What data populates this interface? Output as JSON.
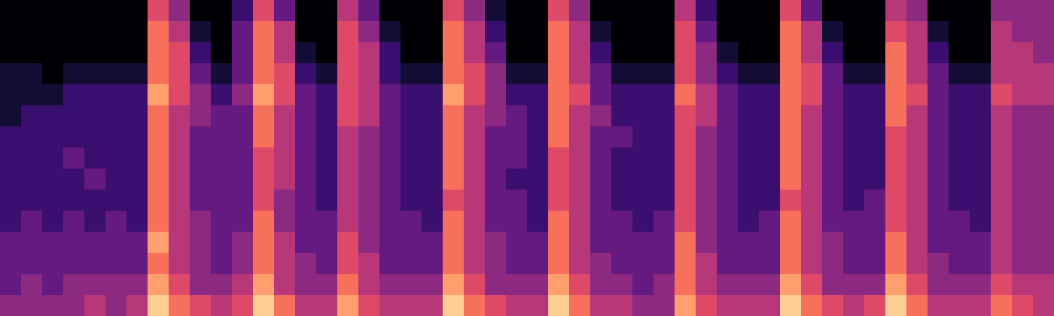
{
  "chart_data": {
    "type": "heatmap",
    "tick_labels": false,
    "zlim": [
      0,
      10
    ],
    "cells": [
      [
        0,
        0,
        0,
        1,
        1,
        1,
        2,
        2,
        2,
        2,
        2,
        3,
        3,
        3,
        4
      ],
      [
        0,
        0,
        0,
        1,
        1,
        2,
        2,
        2,
        2,
        2,
        3,
        3,
        3,
        4,
        4
      ],
      [
        0,
        0,
        0,
        0,
        1,
        2,
        2,
        2,
        2,
        2,
        2,
        3,
        3,
        3,
        4
      ],
      [
        0,
        0,
        0,
        1,
        2,
        2,
        2,
        3,
        2,
        2,
        3,
        3,
        3,
        4,
        4
      ],
      [
        0,
        0,
        0,
        1,
        2,
        2,
        2,
        2,
        3,
        2,
        2,
        3,
        3,
        4,
        5
      ],
      [
        0,
        0,
        0,
        1,
        2,
        2,
        2,
        2,
        2,
        2,
        3,
        3,
        3,
        4,
        4
      ],
      [
        0,
        0,
        0,
        1,
        2,
        2,
        2,
        2,
        2,
        2,
        2,
        3,
        3,
        4,
        5
      ],
      [
        6,
        7,
        7,
        7,
        8,
        7,
        7,
        7,
        7,
        7,
        7,
        8,
        7,
        8,
        9
      ],
      [
        4,
        5,
        6,
        6,
        6,
        5,
        5,
        5,
        5,
        5,
        5,
        5,
        5,
        6,
        7
      ],
      [
        0,
        1,
        2,
        3,
        4,
        4,
        3,
        3,
        3,
        3,
        4,
        4,
        4,
        4,
        6
      ],
      [
        0,
        0,
        0,
        1,
        2,
        3,
        3,
        3,
        3,
        3,
        3,
        3,
        3,
        4,
        5
      ],
      [
        2,
        3,
        3,
        3,
        4,
        3,
        3,
        3,
        3,
        3,
        3,
        4,
        4,
        5,
        6
      ],
      [
        6,
        7,
        7,
        7,
        8,
        7,
        7,
        6,
        6,
        6,
        7,
        7,
        7,
        8,
        9
      ],
      [
        3,
        5,
        5,
        6,
        6,
        5,
        5,
        5,
        5,
        4,
        4,
        5,
        5,
        5,
        7
      ],
      [
        0,
        0,
        1,
        2,
        3,
        3,
        3,
        3,
        3,
        3,
        3,
        3,
        4,
        4,
        5
      ],
      [
        0,
        0,
        0,
        1,
        2,
        2,
        2,
        2,
        2,
        2,
        3,
        3,
        3,
        4,
        5
      ],
      [
        5,
        6,
        6,
        6,
        6,
        6,
        5,
        5,
        5,
        5,
        5,
        6,
        6,
        7,
        8
      ],
      [
        3,
        4,
        5,
        5,
        5,
        5,
        4,
        4,
        4,
        4,
        4,
        4,
        5,
        5,
        6
      ],
      [
        0,
        1,
        2,
        2,
        3,
        3,
        3,
        3,
        3,
        3,
        3,
        3,
        3,
        4,
        5
      ],
      [
        0,
        0,
        0,
        1,
        2,
        2,
        2,
        2,
        2,
        2,
        3,
        3,
        3,
        4,
        5
      ],
      [
        0,
        0,
        0,
        1,
        2,
        2,
        2,
        2,
        2,
        2,
        2,
        3,
        3,
        4,
        5
      ],
      [
        6,
        7,
        7,
        7,
        8,
        7,
        7,
        7,
        7,
        6,
        7,
        7,
        7,
        8,
        9
      ],
      [
        4,
        5,
        5,
        6,
        6,
        5,
        5,
        5,
        5,
        5,
        5,
        5,
        5,
        6,
        7
      ],
      [
        1,
        2,
        3,
        4,
        4,
        4,
        3,
        3,
        3,
        3,
        3,
        4,
        4,
        4,
        6
      ],
      [
        0,
        0,
        0,
        1,
        2,
        3,
        3,
        3,
        2,
        3,
        3,
        3,
        3,
        4,
        5
      ],
      [
        0,
        0,
        0,
        1,
        2,
        2,
        2,
        2,
        2,
        2,
        2,
        3,
        3,
        4,
        5
      ],
      [
        6,
        7,
        7,
        7,
        7,
        7,
        7,
        6,
        6,
        6,
        7,
        7,
        7,
        8,
        9
      ],
      [
        4,
        5,
        5,
        5,
        6,
        5,
        5,
        5,
        5,
        5,
        5,
        5,
        5,
        6,
        7
      ],
      [
        0,
        1,
        2,
        3,
        3,
        4,
        3,
        3,
        3,
        3,
        3,
        3,
        4,
        4,
        5
      ],
      [
        0,
        0,
        0,
        1,
        2,
        2,
        3,
        2,
        2,
        2,
        3,
        3,
        3,
        4,
        5
      ],
      [
        0,
        0,
        0,
        1,
        2,
        2,
        2,
        2,
        2,
        2,
        2,
        3,
        3,
        3,
        4
      ],
      [
        0,
        0,
        0,
        1,
        2,
        2,
        2,
        2,
        2,
        2,
        3,
        3,
        3,
        4,
        4
      ],
      [
        5,
        6,
        6,
        6,
        7,
        6,
        6,
        6,
        6,
        6,
        6,
        7,
        7,
        7,
        8
      ],
      [
        2,
        3,
        4,
        4,
        5,
        5,
        4,
        4,
        4,
        4,
        4,
        4,
        5,
        5,
        6
      ],
      [
        0,
        0,
        1,
        2,
        3,
        3,
        3,
        3,
        3,
        3,
        3,
        3,
        3,
        4,
        5
      ],
      [
        0,
        0,
        0,
        1,
        2,
        2,
        2,
        2,
        2,
        2,
        2,
        3,
        3,
        4,
        5
      ],
      [
        0,
        0,
        0,
        1,
        2,
        2,
        2,
        2,
        2,
        2,
        3,
        3,
        3,
        4,
        5
      ],
      [
        6,
        7,
        7,
        7,
        7,
        7,
        7,
        7,
        7,
        6,
        7,
        7,
        7,
        8,
        9
      ],
      [
        3,
        5,
        5,
        6,
        6,
        5,
        5,
        5,
        5,
        5,
        5,
        5,
        5,
        6,
        7
      ],
      [
        0,
        1,
        2,
        3,
        3,
        3,
        3,
        3,
        3,
        3,
        3,
        4,
        4,
        4,
        6
      ],
      [
        0,
        0,
        0,
        1,
        2,
        2,
        2,
        2,
        2,
        2,
        3,
        3,
        3,
        4,
        5
      ],
      [
        0,
        0,
        0,
        1,
        2,
        2,
        2,
        2,
        2,
        3,
        3,
        3,
        3,
        4,
        6
      ],
      [
        5,
        6,
        7,
        7,
        7,
        7,
        6,
        6,
        6,
        6,
        6,
        7,
        7,
        8,
        9
      ],
      [
        4,
        5,
        5,
        5,
        6,
        5,
        5,
        5,
        5,
        5,
        5,
        5,
        5,
        6,
        7
      ],
      [
        0,
        1,
        2,
        3,
        3,
        3,
        3,
        3,
        3,
        3,
        3,
        3,
        4,
        4,
        5
      ],
      [
        0,
        0,
        0,
        1,
        2,
        2,
        2,
        2,
        2,
        2,
        3,
        3,
        3,
        4,
        5
      ],
      [
        0,
        0,
        0,
        1,
        2,
        2,
        2,
        2,
        2,
        2,
        2,
        3,
        3,
        4,
        5
      ],
      [
        4,
        5,
        5,
        5,
        6,
        5,
        5,
        5,
        5,
        5,
        5,
        5,
        5,
        6,
        7
      ],
      [
        4,
        4,
        5,
        5,
        5,
        4,
        4,
        4,
        4,
        4,
        4,
        4,
        4,
        5,
        6
      ],
      [
        4,
        4,
        4,
        5,
        5,
        4,
        4,
        4,
        4,
        4,
        4,
        4,
        4,
        5,
        5
      ]
    ]
  }
}
